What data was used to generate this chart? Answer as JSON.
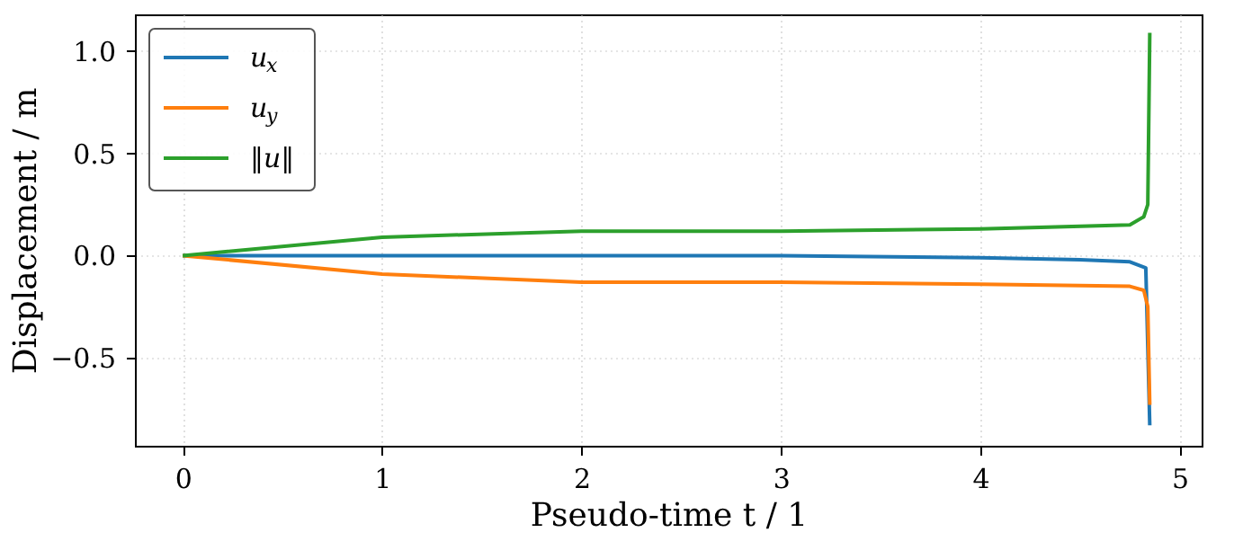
{
  "chart_data": {
    "type": "line",
    "xlabel": "Pseudo-time t / 1",
    "ylabel": "Displacement / m",
    "xlim": [
      -0.24,
      5.11
    ],
    "ylim": [
      -0.93,
      1.18
    ],
    "xticks": [
      0,
      1,
      2,
      3,
      4,
      5
    ],
    "yticks": [
      {
        "value": -0.5,
        "label": "−0.5"
      },
      {
        "value": 0,
        "label": "0.0"
      },
      {
        "value": 0.5,
        "label": "0.5"
      },
      {
        "value": 1,
        "label": "1.0"
      }
    ],
    "grid": true,
    "legend": "top left",
    "line_style": "solid",
    "marker": "none",
    "series": [
      {
        "name": "u$_{x}$",
        "color": "#1f77b4",
        "x": [
          0,
          1,
          2,
          3,
          4,
          4.5,
          4.75,
          4.83,
          4.85
        ],
        "values": [
          0,
          0,
          0,
          0,
          -0.01,
          -0.02,
          -0.03,
          -0.06,
          -0.83
        ]
      },
      {
        "name": "u$_{y}$",
        "color": "#ff7f0e",
        "x": [
          0,
          1,
          2,
          3,
          4,
          4.75,
          4.82,
          4.84,
          4.85
        ],
        "values": [
          0,
          -0.09,
          -0.13,
          -0.13,
          -0.14,
          -0.15,
          -0.17,
          -0.25,
          -0.73
        ]
      },
      {
        "name": "‖u‖",
        "color": "#2ca02c",
        "x": [
          0,
          1,
          2,
          3,
          4,
          4.75,
          4.82,
          4.84,
          4.85
        ],
        "values": [
          0,
          0.09,
          0.12,
          0.12,
          0.13,
          0.15,
          0.19,
          0.25,
          1.09
        ]
      }
    ]
  }
}
